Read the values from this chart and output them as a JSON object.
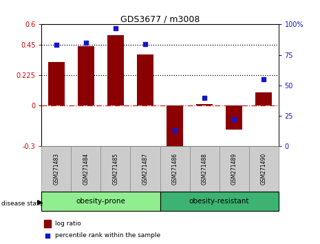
{
  "title": "GDS3677 / m3008",
  "samples": [
    "GSM271483",
    "GSM271484",
    "GSM271485",
    "GSM271487",
    "GSM271486",
    "GSM271488",
    "GSM271489",
    "GSM271490"
  ],
  "log_ratio": [
    0.32,
    0.44,
    0.52,
    0.38,
    -0.35,
    0.01,
    -0.175,
    0.1
  ],
  "percentile_rank": [
    83,
    85,
    97,
    84,
    13,
    40,
    22,
    55
  ],
  "bar_color": "#8B0000",
  "dot_color": "#1515CC",
  "ylim_left": [
    -0.3,
    0.6
  ],
  "ylim_right": [
    0,
    100
  ],
  "yticks_left": [
    -0.3,
    0,
    0.225,
    0.45,
    0.6
  ],
  "yticks_right": [
    0,
    25,
    50,
    75,
    100
  ],
  "hlines": [
    0.225,
    0.45
  ],
  "bg_color": "#FFFFFF",
  "group_prone_color": "#90EE90",
  "group_resistant_color": "#3CB371",
  "legend_items": [
    "log ratio",
    "percentile rank within the sample"
  ]
}
